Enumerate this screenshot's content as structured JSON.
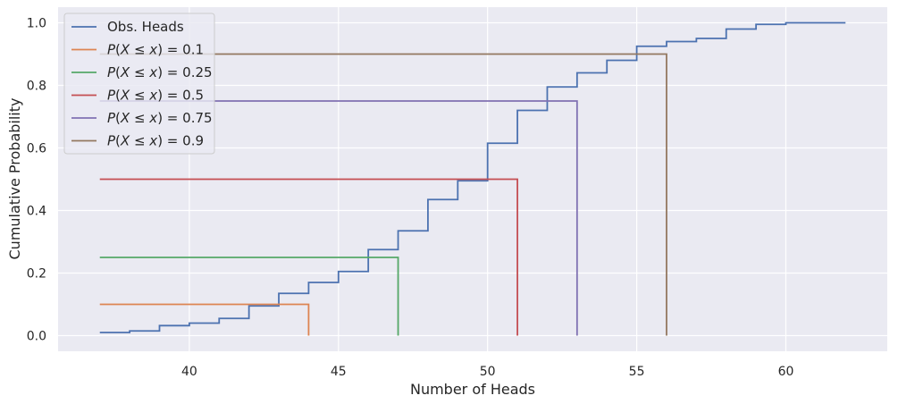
{
  "chart_data": {
    "type": "line",
    "step": "post",
    "xlabel": "Number of Heads",
    "ylabel": "Cumulative Probability",
    "xlim": [
      35.6,
      63.4
    ],
    "ylim": [
      -0.05,
      1.05
    ],
    "xticks": [
      "40",
      "45",
      "50",
      "55",
      "60"
    ],
    "yticks": [
      "0.0",
      "0.2",
      "0.4",
      "0.6",
      "0.8",
      "1.0"
    ],
    "grid": true,
    "legend_position": "top-left",
    "series": [
      {
        "name": "Obs. Heads",
        "color": "#4c72b0",
        "x": [
          37,
          38,
          39,
          40,
          41,
          42,
          43,
          44,
          45,
          46,
          47,
          48,
          49,
          50,
          51,
          52,
          53,
          54,
          55,
          56,
          57,
          58,
          59,
          60,
          62
        ],
        "y": [
          0.01,
          0.015,
          0.032,
          0.04,
          0.055,
          0.095,
          0.135,
          0.17,
          0.205,
          0.275,
          0.335,
          0.435,
          0.495,
          0.615,
          0.72,
          0.795,
          0.84,
          0.88,
          0.925,
          0.94,
          0.95,
          0.98,
          0.995,
          1.0,
          1.0
        ]
      },
      {
        "name": "P(X ≤ x) = 0.1",
        "legend_value": "0.1",
        "color": "#dd8452",
        "x": [
          37,
          44
        ],
        "y": [
          0.1,
          0.1
        ]
      },
      {
        "name": "P(X ≤ x) = 0.25",
        "legend_value": "0.25",
        "color": "#55a868",
        "x": [
          37,
          47
        ],
        "y": [
          0.25,
          0.25
        ]
      },
      {
        "name": "P(X ≤ x) = 0.5",
        "legend_value": "0.5",
        "color": "#c44e52",
        "x": [
          37,
          51
        ],
        "y": [
          0.5,
          0.5
        ]
      },
      {
        "name": "P(X ≤ x) = 0.75",
        "legend_value": "0.75",
        "color": "#8172b3",
        "x": [
          37,
          53
        ],
        "y": [
          0.75,
          0.75
        ]
      },
      {
        "name": "P(X ≤ x) = 0.9",
        "legend_value": "0.9",
        "color": "#937860",
        "x": [
          37,
          56
        ],
        "y": [
          0.9,
          0.9
        ]
      }
    ]
  }
}
